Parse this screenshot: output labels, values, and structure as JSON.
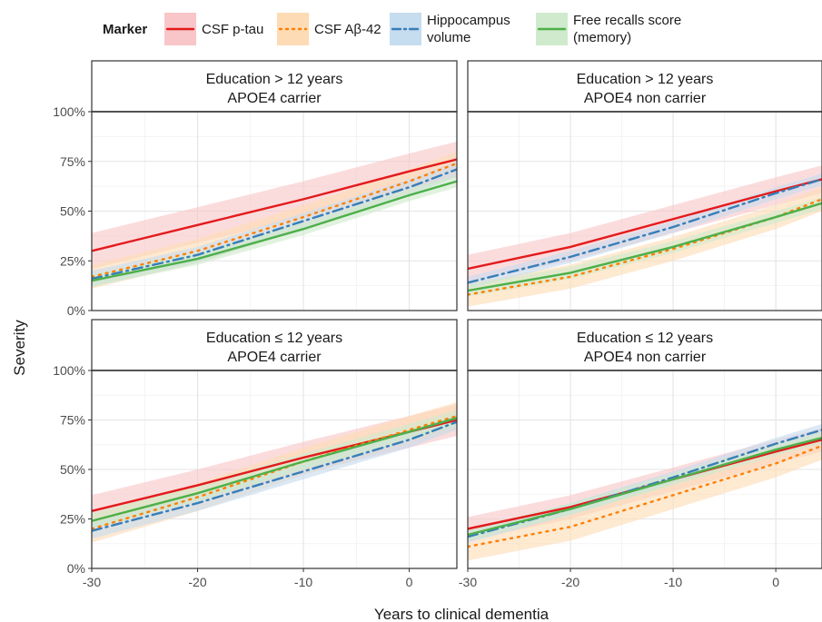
{
  "chart_data": {
    "type": "line",
    "xlabel": "Years to clinical dementia",
    "ylabel": "Severity",
    "xlim": [
      -30,
      4.5
    ],
    "ylim": [
      0,
      1.22
    ],
    "x_ticks": [
      -30,
      -20,
      -10,
      0
    ],
    "x_tick_labels": [
      "-30",
      "-20",
      "-10",
      "0"
    ],
    "y_ticks": [
      0,
      0.25,
      0.5,
      0.75,
      1.0
    ],
    "y_tick_labels": [
      "0%",
      "25%",
      "50%",
      "75%",
      "100%"
    ],
    "reference_line": 1.0,
    "legend": {
      "title": "Marker",
      "position": "top",
      "entries": [
        {
          "label_lines": [
            "CSF p-tau"
          ],
          "series": "CSF p-tau"
        },
        {
          "label_lines": [
            "CSF Aβ-42"
          ],
          "series": "CSF Aβ-42"
        },
        {
          "label_lines": [
            "Hippocampus",
            "volume"
          ],
          "series": "Hippocampus volume"
        },
        {
          "label_lines": [
            "Free recalls score",
            "(memory)"
          ],
          "series": "Free recalls score (memory)"
        }
      ]
    },
    "series_styles": [
      {
        "name": "CSF p-tau",
        "color": "#e41a1c",
        "band": "#f8c6c8",
        "dash": "none"
      },
      {
        "name": "CSF Aβ-42",
        "color": "#ff7f00",
        "band": "#fddbb5",
        "dash": "dotted"
      },
      {
        "name": "Hippocampus volume",
        "color": "#377eb8",
        "band": "#c6dcef",
        "dash": "dashdot"
      },
      {
        "name": "Free recalls score (memory)",
        "color": "#4daf4a",
        "band": "#cfeacc",
        "dash": "none"
      }
    ],
    "panels": [
      {
        "strip": [
          "Education > 12 years",
          "APOE4 carrier"
        ],
        "series": [
          {
            "name": "CSF p-tau",
            "x": [
              -30,
              -20,
              -10,
              0,
              4.5
            ],
            "y": [
              0.3,
              0.43,
              0.56,
              0.7,
              0.76
            ],
            "band_halfwidth": 0.09
          },
          {
            "name": "CSF Aβ-42",
            "x": [
              -30,
              -20,
              -10,
              0,
              4.5
            ],
            "y": [
              0.17,
              0.3,
              0.47,
              0.65,
              0.74
            ],
            "band_halfwidth": 0.06
          },
          {
            "name": "Hippocampus volume",
            "x": [
              -30,
              -20,
              -10,
              0,
              4.5
            ],
            "y": [
              0.16,
              0.28,
              0.45,
              0.62,
              0.71
            ],
            "band_halfwidth": 0.04
          },
          {
            "name": "Free recalls score (memory)",
            "x": [
              -30,
              -20,
              -10,
              0,
              4.5
            ],
            "y": [
              0.15,
              0.26,
              0.41,
              0.58,
              0.65
            ],
            "band_halfwidth": 0.03
          }
        ]
      },
      {
        "strip": [
          "Education > 12 years",
          "APOE4 non carrier"
        ],
        "series": [
          {
            "name": "CSF p-tau",
            "x": [
              -30,
              -20,
              -10,
              0,
              4.5
            ],
            "y": [
              0.21,
              0.32,
              0.46,
              0.6,
              0.66
            ],
            "band_halfwidth": 0.07
          },
          {
            "name": "CSF Aβ-42",
            "x": [
              -30,
              -20,
              -10,
              0,
              4.5
            ],
            "y": [
              0.08,
              0.17,
              0.31,
              0.47,
              0.56
            ],
            "band_halfwidth": 0.06
          },
          {
            "name": "Hippocampus volume",
            "x": [
              -30,
              -20,
              -10,
              0,
              4.5
            ],
            "y": [
              0.14,
              0.27,
              0.42,
              0.59,
              0.66
            ],
            "band_halfwidth": 0.03
          },
          {
            "name": "Free recalls score (memory)",
            "x": [
              -30,
              -20,
              -10,
              0,
              4.5
            ],
            "y": [
              0.1,
              0.19,
              0.32,
              0.47,
              0.54
            ],
            "band_halfwidth": 0.03
          }
        ]
      },
      {
        "strip": [
          "Education ≤ 12 years",
          "APOE4 carrier"
        ],
        "series": [
          {
            "name": "CSF p-tau",
            "x": [
              -30,
              -20,
              -10,
              0,
              4.5
            ],
            "y": [
              0.29,
              0.42,
              0.56,
              0.69,
              0.75
            ],
            "band_halfwidth": 0.08
          },
          {
            "name": "CSF Aβ-42",
            "x": [
              -30,
              -20,
              -10,
              0,
              4.5
            ],
            "y": [
              0.2,
              0.36,
              0.54,
              0.7,
              0.77
            ],
            "band_halfwidth": 0.07
          },
          {
            "name": "Hippocampus volume",
            "x": [
              -30,
              -20,
              -10,
              0,
              4.5
            ],
            "y": [
              0.19,
              0.33,
              0.49,
              0.65,
              0.74
            ],
            "band_halfwidth": 0.04
          },
          {
            "name": "Free recalls score (memory)",
            "x": [
              -30,
              -20,
              -10,
              0,
              4.5
            ],
            "y": [
              0.24,
              0.38,
              0.54,
              0.69,
              0.76
            ],
            "band_halfwidth": 0.04
          }
        ]
      },
      {
        "strip": [
          "Education ≤ 12 years",
          "APOE4 non carrier"
        ],
        "series": [
          {
            "name": "CSF p-tau",
            "x": [
              -30,
              -20,
              -10,
              0,
              4.5
            ],
            "y": [
              0.2,
              0.31,
              0.45,
              0.59,
              0.65
            ],
            "band_halfwidth": 0.06
          },
          {
            "name": "CSF Aβ-42",
            "x": [
              -30,
              -20,
              -10,
              0,
              4.5
            ],
            "y": [
              0.11,
              0.21,
              0.37,
              0.53,
              0.62
            ],
            "band_halfwidth": 0.07
          },
          {
            "name": "Hippocampus volume",
            "x": [
              -30,
              -20,
              -10,
              0,
              4.5
            ],
            "y": [
              0.16,
              0.3,
              0.46,
              0.63,
              0.7
            ],
            "band_halfwidth": 0.03
          },
          {
            "name": "Free recalls score (memory)",
            "x": [
              -30,
              -20,
              -10,
              0,
              4.5
            ],
            "y": [
              0.17,
              0.3,
              0.45,
              0.6,
              0.66
            ],
            "band_halfwidth": 0.03
          }
        ]
      }
    ]
  }
}
